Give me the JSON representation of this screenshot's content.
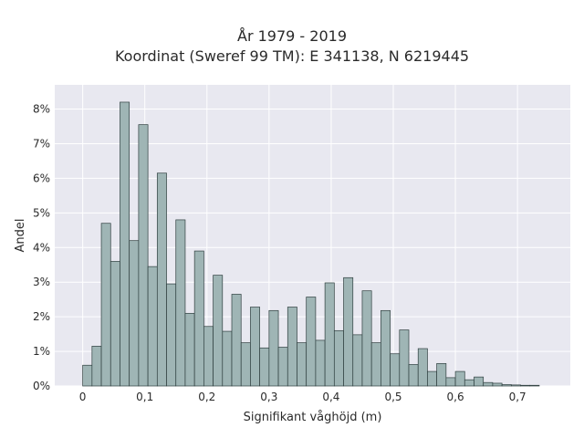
{
  "chart_data": {
    "type": "bar",
    "title": "År 1979 - 2019",
    "subtitle": "Koordinat (Sweref 99 TM): E 341138, N 6219445",
    "xlabel": "Signifikant våghöjd (m)",
    "ylabel": "Andel",
    "xlim": [
      -0.045,
      0.785
    ],
    "ylim": [
      0,
      8.7
    ],
    "x_ticks": [
      0,
      0.1,
      0.2,
      0.3,
      0.4,
      0.5,
      0.6,
      0.7
    ],
    "x_tick_labels": [
      "0",
      "0,1",
      "0,2",
      "0,3",
      "0,4",
      "0,5",
      "0,6",
      "0,7"
    ],
    "y_ticks": [
      0,
      1,
      2,
      3,
      4,
      5,
      6,
      7,
      8
    ],
    "y_tick_labels": [
      "0%",
      "1%",
      "2%",
      "3%",
      "4%",
      "5%",
      "6%",
      "7%",
      "8%"
    ],
    "bin_width": 0.015,
    "bin_start": 0,
    "values": [
      0.6,
      1.15,
      4.7,
      3.6,
      8.2,
      4.2,
      7.55,
      3.45,
      6.15,
      2.95,
      4.8,
      2.1,
      3.9,
      1.72,
      3.2,
      1.58,
      2.65,
      1.25,
      2.28,
      1.1,
      2.18,
      1.12,
      2.28,
      1.25,
      2.57,
      1.32,
      2.98,
      1.6,
      3.13,
      1.48,
      2.75,
      1.25,
      2.18,
      0.93,
      1.62,
      0.62,
      1.08,
      0.42,
      0.65,
      0.24,
      0.42,
      0.18,
      0.26,
      0.1,
      0.08,
      0.04,
      0.03,
      0.02,
      0.02
    ],
    "grid": true,
    "colors": {
      "bar_fill": "#9fb5b5",
      "bar_edge": "#2f3f3f",
      "plot_bg": "#e8e8f0",
      "grid": "#ffffff"
    }
  }
}
